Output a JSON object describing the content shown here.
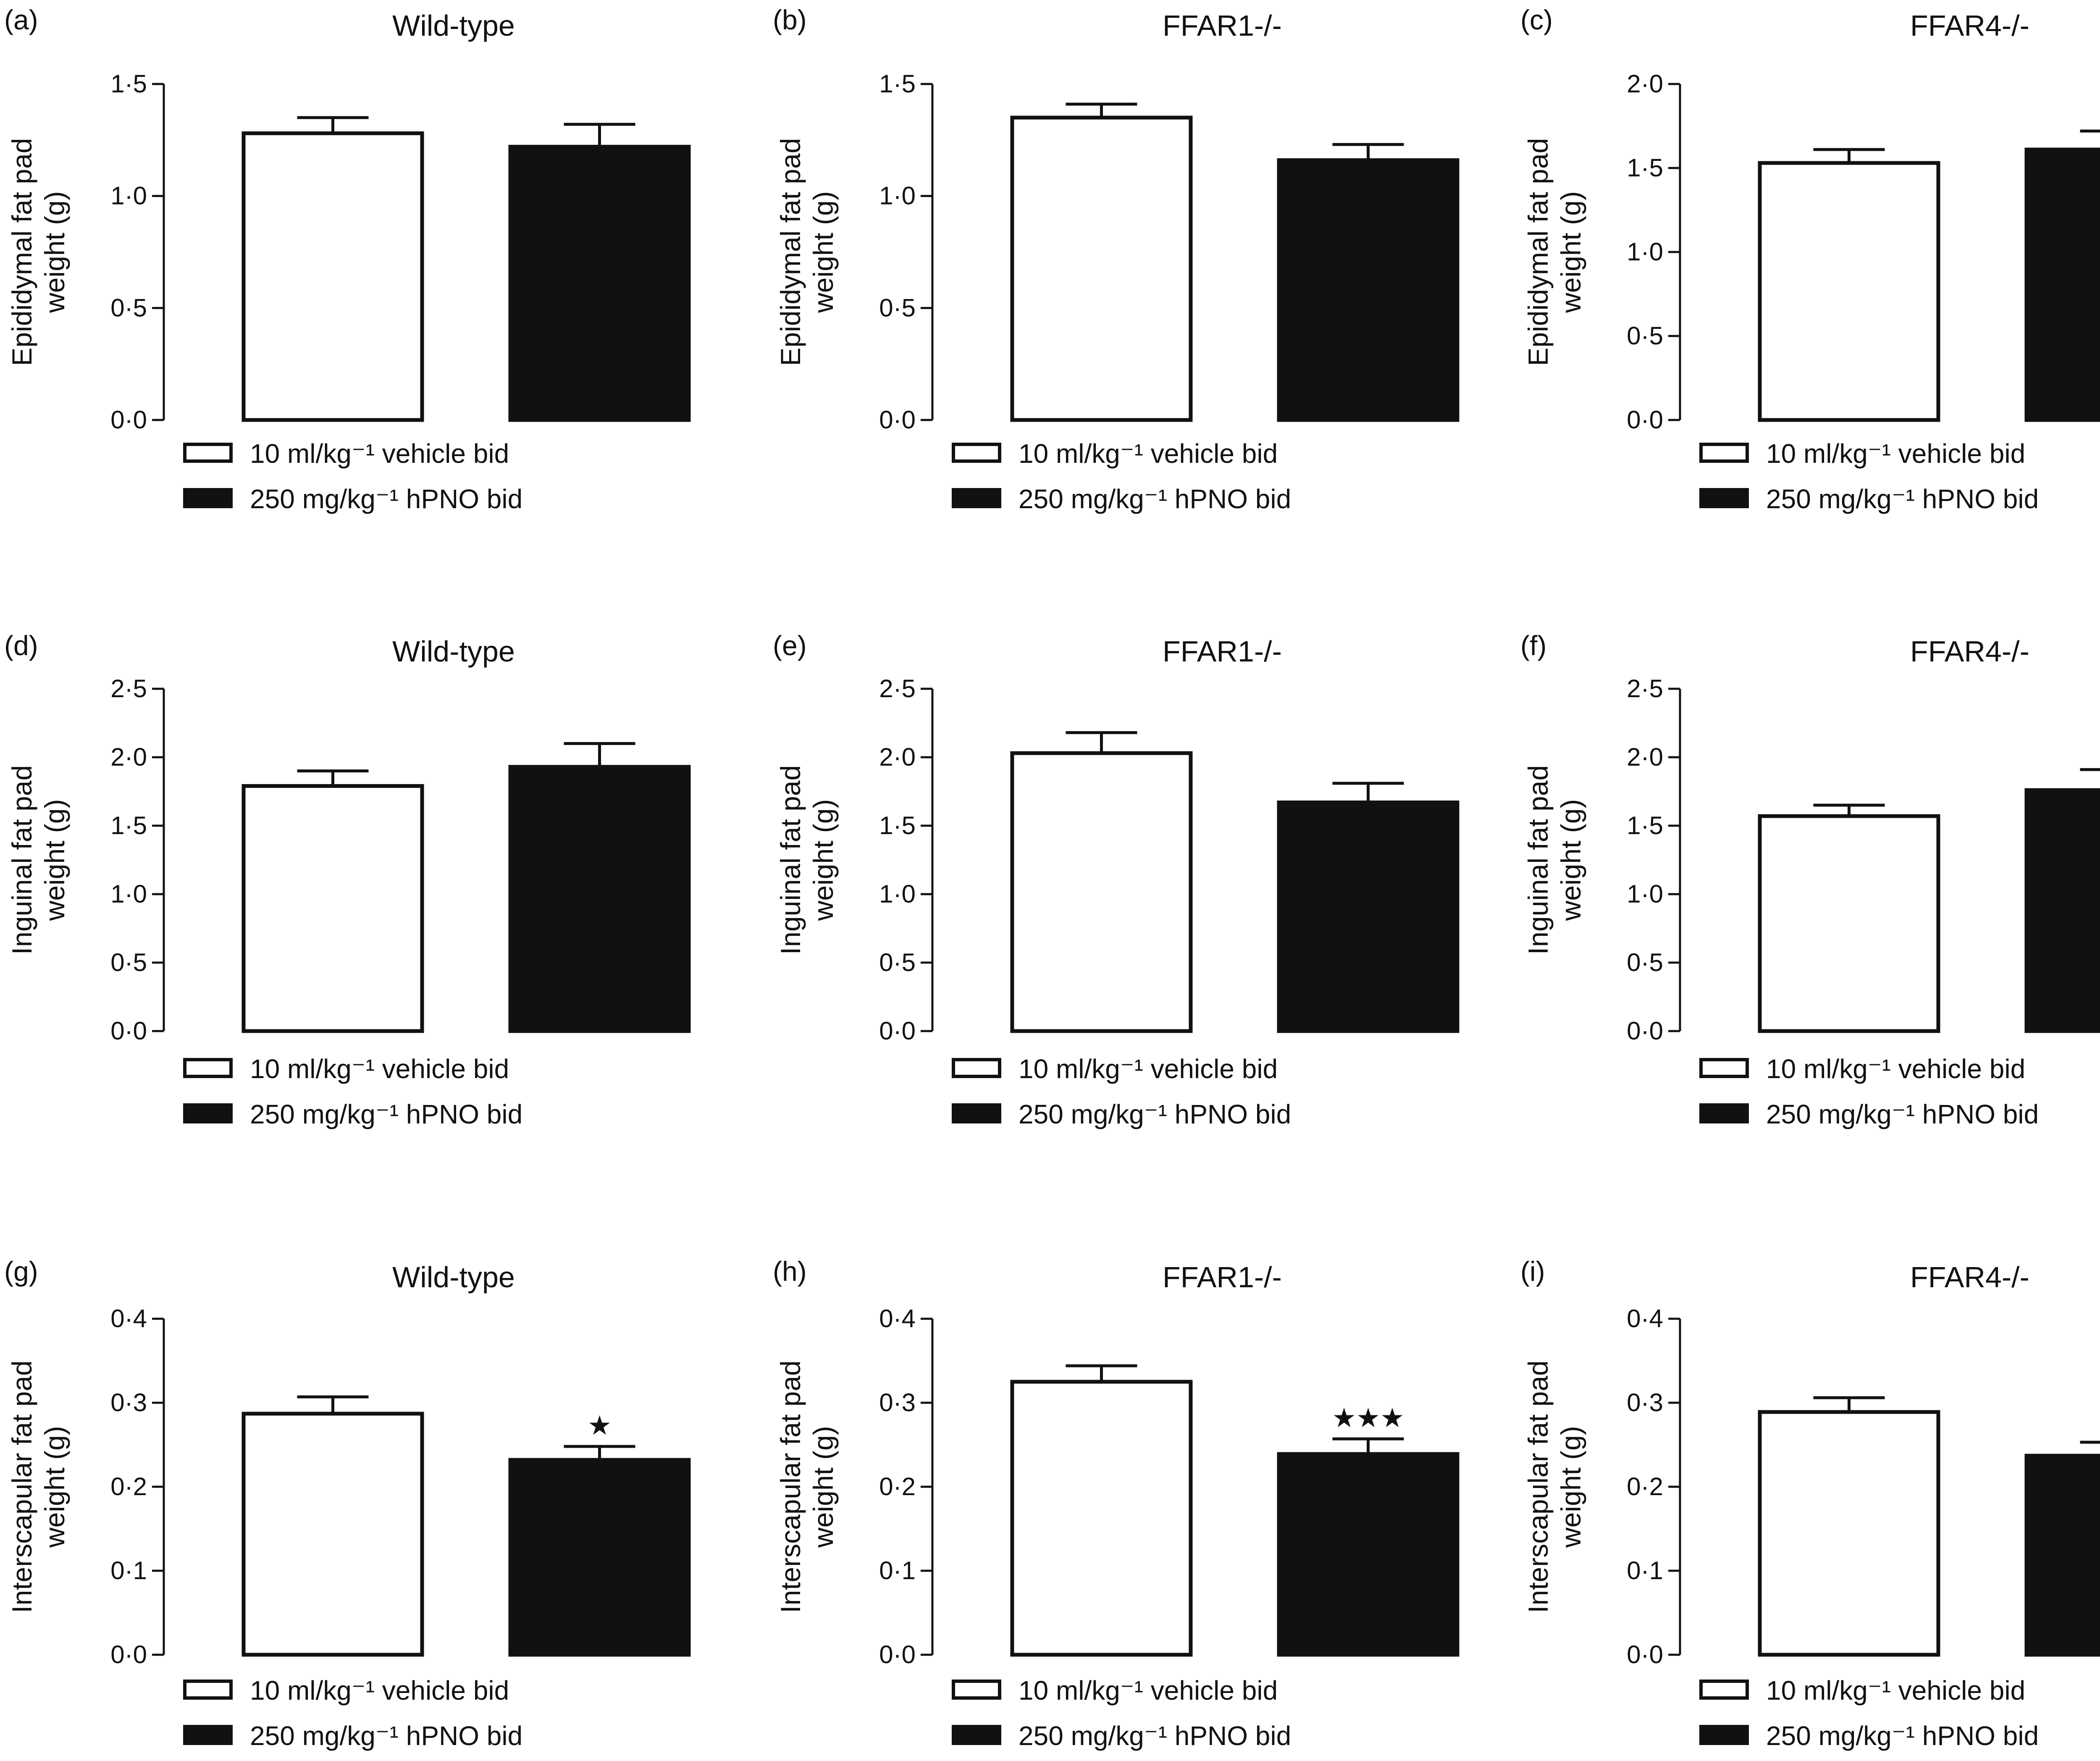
{
  "chart_data": [
    {
      "panel": "(a)",
      "type": "bar",
      "title": "Wild-type",
      "ylabel": [
        "Epididymal fat pad",
        "weight (g)"
      ],
      "ylim": [
        0,
        1.5
      ],
      "yticks": [
        "0·0",
        "0·5",
        "1·0",
        "1·5"
      ],
      "categories": [
        "10 ml/kg⁻¹ vehicle bid",
        "250 mg/kg⁻¹ hPNO bid"
      ],
      "values": [
        1.28,
        1.22
      ],
      "errors": [
        0.07,
        0.1
      ],
      "significance": [
        "",
        ""
      ]
    },
    {
      "panel": "(b)",
      "type": "bar",
      "title": "FFAR1-/-",
      "ylabel": [
        "Epididymal fat pad",
        "weight (g)"
      ],
      "ylim": [
        0,
        1.5
      ],
      "yticks": [
        "0·0",
        "0·5",
        "1·0",
        "1·5"
      ],
      "categories": [
        "10 ml/kg⁻¹ vehicle bid",
        "250 mg/kg⁻¹ hPNO bid"
      ],
      "values": [
        1.35,
        1.16
      ],
      "errors": [
        0.06,
        0.07
      ],
      "significance": [
        "",
        ""
      ]
    },
    {
      "panel": "(c)",
      "type": "bar",
      "title": "FFAR4-/-",
      "ylabel": [
        "Epididymal fat pad",
        "weight (g)"
      ],
      "ylim": [
        0,
        2.0
      ],
      "yticks": [
        "0·0",
        "0·5",
        "1·0",
        "1·5",
        "2·0"
      ],
      "categories": [
        "10 ml/kg⁻¹ vehicle bid",
        "250 mg/kg⁻¹ hPNO bid"
      ],
      "values": [
        1.53,
        1.61
      ],
      "errors": [
        0.08,
        0.11
      ],
      "significance": [
        "",
        ""
      ]
    },
    {
      "panel": "(d)",
      "type": "bar",
      "title": "Wild-type",
      "ylabel": [
        "Inguinal fat pad",
        "weight (g)"
      ],
      "ylim": [
        0,
        2.5
      ],
      "yticks": [
        "0·0",
        "0·5",
        "1·0",
        "1·5",
        "2·0",
        "2·5"
      ],
      "categories": [
        "10 ml/kg⁻¹ vehicle bid",
        "250 mg/kg⁻¹ hPNO bid"
      ],
      "values": [
        1.79,
        1.93
      ],
      "errors": [
        0.11,
        0.17
      ],
      "significance": [
        "",
        ""
      ]
    },
    {
      "panel": "(e)",
      "type": "bar",
      "title": "FFAR1-/-",
      "ylabel": [
        "Inguinal fat pad",
        "weight (g)"
      ],
      "ylim": [
        0,
        2.5
      ],
      "yticks": [
        "0·0",
        "0·5",
        "1·0",
        "1·5",
        "2·0",
        "2·5"
      ],
      "categories": [
        "10 ml/kg⁻¹ vehicle bid",
        "250 mg/kg⁻¹ hPNO bid"
      ],
      "values": [
        2.03,
        1.67
      ],
      "errors": [
        0.15,
        0.14
      ],
      "significance": [
        "",
        ""
      ]
    },
    {
      "panel": "(f)",
      "type": "bar",
      "title": "FFAR4-/-",
      "ylabel": [
        "Inguinal fat pad",
        "weight (g)"
      ],
      "ylim": [
        0,
        2.5
      ],
      "yticks": [
        "0·0",
        "0·5",
        "1·0",
        "1·5",
        "2·0",
        "2·5"
      ],
      "categories": [
        "10 ml/kg⁻¹ vehicle bid",
        "250 mg/kg⁻¹ hPNO bid"
      ],
      "values": [
        1.57,
        1.76
      ],
      "errors": [
        0.08,
        0.15
      ],
      "significance": [
        "",
        ""
      ]
    },
    {
      "panel": "(g)",
      "type": "bar",
      "title": "Wild-type",
      "ylabel": [
        "Interscapular fat pad",
        "weight (g)"
      ],
      "ylim": [
        0,
        0.4
      ],
      "yticks": [
        "0·0",
        "0·1",
        "0·2",
        "0·3",
        "0·4"
      ],
      "categories": [
        "10 ml/kg⁻¹ vehicle bid",
        "250 mg/kg⁻¹ hPNO bid"
      ],
      "values": [
        0.287,
        0.232
      ],
      "errors": [
        0.02,
        0.016
      ],
      "significance": [
        "",
        "★"
      ]
    },
    {
      "panel": "(h)",
      "type": "bar",
      "title": "FFAR1-/-",
      "ylabel": [
        "Interscapular fat pad",
        "weight (g)"
      ],
      "ylim": [
        0,
        0.4
      ],
      "yticks": [
        "0·0",
        "0·1",
        "0·2",
        "0·3",
        "0·4"
      ],
      "categories": [
        "10 ml/kg⁻¹ vehicle bid",
        "250 mg/kg⁻¹ hPNO bid"
      ],
      "values": [
        0.325,
        0.239
      ],
      "errors": [
        0.019,
        0.018
      ],
      "significance": [
        "",
        "★★★"
      ]
    },
    {
      "panel": "(i)",
      "type": "bar",
      "title": "FFAR4-/-",
      "ylabel": [
        "Interscapular fat pad",
        "weight (g)"
      ],
      "ylim": [
        0,
        0.4
      ],
      "yticks": [
        "0·0",
        "0·1",
        "0·2",
        "0·3",
        "0·4"
      ],
      "categories": [
        "10 ml/kg⁻¹ vehicle bid",
        "250 mg/kg⁻¹ hPNO bid"
      ],
      "values": [
        0.289,
        0.237
      ],
      "errors": [
        0.017,
        0.016
      ],
      "significance": [
        "",
        ""
      ]
    }
  ],
  "colors": {
    "vehicle_fill": "#ffffff",
    "hpno_fill": "#111111",
    "stroke": "#111111"
  }
}
